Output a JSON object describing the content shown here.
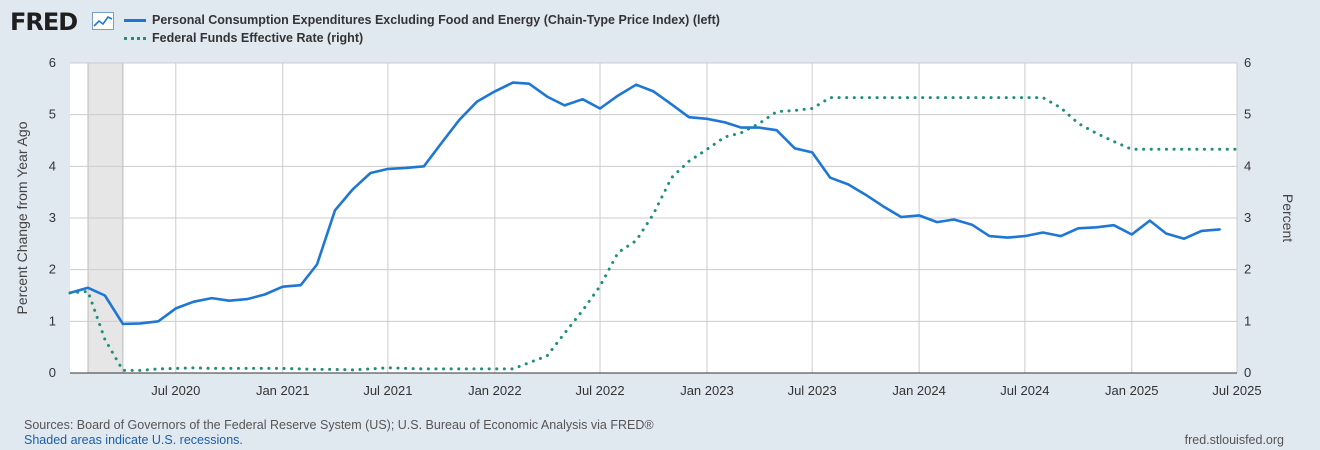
{
  "header": {
    "logo_text": "FRED",
    "logo_icon": "chart-line-icon"
  },
  "colors": {
    "background": "#e1e9f0",
    "plot_bg": "#ffffff",
    "grid": "#cccccc",
    "series1": "#1f77d4",
    "series2": "#1d8f7a",
    "recession": "#e6e6e6"
  },
  "chart_data": {
    "type": "line",
    "series": [
      {
        "name": "Personal Consumption Expenditures Excluding Food and Energy (Chain-Type Price Index) (left)",
        "axis": "left",
        "style": "solid",
        "points": [
          [
            "2020-01-01",
            1.55
          ],
          [
            "2020-02-01",
            1.65
          ],
          [
            "2020-03-01",
            1.5
          ],
          [
            "2020-04-01",
            0.95
          ],
          [
            "2020-05-01",
            0.96
          ],
          [
            "2020-06-01",
            1.0
          ],
          [
            "2020-07-01",
            1.25
          ],
          [
            "2020-08-01",
            1.38
          ],
          [
            "2020-09-01",
            1.45
          ],
          [
            "2020-10-01",
            1.4
          ],
          [
            "2020-11-01",
            1.43
          ],
          [
            "2020-12-01",
            1.52
          ],
          [
            "2021-01-01",
            1.67
          ],
          [
            "2021-02-01",
            1.7
          ],
          [
            "2021-03-01",
            2.1
          ],
          [
            "2021-04-01",
            3.15
          ],
          [
            "2021-05-01",
            3.55
          ],
          [
            "2021-06-01",
            3.87
          ],
          [
            "2021-07-01",
            3.95
          ],
          [
            "2021-08-01",
            3.97
          ],
          [
            "2021-09-01",
            4.0
          ],
          [
            "2021-10-01",
            4.45
          ],
          [
            "2021-11-01",
            4.9
          ],
          [
            "2021-12-01",
            5.25
          ],
          [
            "2022-01-01",
            5.45
          ],
          [
            "2022-02-01",
            5.62
          ],
          [
            "2022-03-01",
            5.6
          ],
          [
            "2022-04-01",
            5.35
          ],
          [
            "2022-05-01",
            5.18
          ],
          [
            "2022-06-01",
            5.3
          ],
          [
            "2022-07-01",
            5.12
          ],
          [
            "2022-08-01",
            5.37
          ],
          [
            "2022-09-01",
            5.58
          ],
          [
            "2022-10-01",
            5.45
          ],
          [
            "2022-11-01",
            5.2
          ],
          [
            "2022-12-01",
            4.95
          ],
          [
            "2023-01-01",
            4.92
          ],
          [
            "2023-02-01",
            4.85
          ],
          [
            "2023-03-01",
            4.75
          ],
          [
            "2023-04-01",
            4.75
          ],
          [
            "2023-05-01",
            4.7
          ],
          [
            "2023-06-01",
            4.35
          ],
          [
            "2023-07-01",
            4.27
          ],
          [
            "2023-08-01",
            3.78
          ],
          [
            "2023-09-01",
            3.65
          ],
          [
            "2023-10-01",
            3.45
          ],
          [
            "2023-11-01",
            3.22
          ],
          [
            "2023-12-01",
            3.02
          ],
          [
            "2024-01-01",
            3.05
          ],
          [
            "2024-02-01",
            2.92
          ],
          [
            "2024-03-01",
            2.97
          ],
          [
            "2024-04-01",
            2.87
          ],
          [
            "2024-05-01",
            2.65
          ],
          [
            "2024-06-01",
            2.62
          ],
          [
            "2024-07-01",
            2.65
          ],
          [
            "2024-08-01",
            2.72
          ],
          [
            "2024-09-01",
            2.65
          ],
          [
            "2024-10-01",
            2.8
          ],
          [
            "2024-11-01",
            2.82
          ],
          [
            "2024-12-01",
            2.86
          ],
          [
            "2025-01-01",
            2.68
          ],
          [
            "2025-02-01",
            2.95
          ],
          [
            "2025-03-01",
            2.7
          ],
          [
            "2025-04-01",
            2.6
          ],
          [
            "2025-05-01",
            2.75
          ],
          [
            "2025-06-01",
            2.78
          ]
        ]
      },
      {
        "name": "Federal Funds Effective Rate (right)",
        "axis": "right",
        "style": "dotted",
        "points": [
          [
            "2020-01-01",
            1.55
          ],
          [
            "2020-02-01",
            1.58
          ],
          [
            "2020-03-01",
            0.65
          ],
          [
            "2020-04-01",
            0.05
          ],
          [
            "2020-05-01",
            0.05
          ],
          [
            "2020-06-01",
            0.08
          ],
          [
            "2020-07-01",
            0.09
          ],
          [
            "2020-08-01",
            0.1
          ],
          [
            "2020-09-01",
            0.09
          ],
          [
            "2020-10-01",
            0.09
          ],
          [
            "2020-11-01",
            0.09
          ],
          [
            "2020-12-01",
            0.09
          ],
          [
            "2021-01-01",
            0.09
          ],
          [
            "2021-02-01",
            0.08
          ],
          [
            "2021-03-01",
            0.07
          ],
          [
            "2021-04-01",
            0.07
          ],
          [
            "2021-05-01",
            0.06
          ],
          [
            "2021-06-01",
            0.08
          ],
          [
            "2021-07-01",
            0.1
          ],
          [
            "2021-08-01",
            0.09
          ],
          [
            "2021-09-01",
            0.08
          ],
          [
            "2021-10-01",
            0.08
          ],
          [
            "2021-11-01",
            0.08
          ],
          [
            "2021-12-01",
            0.08
          ],
          [
            "2022-01-01",
            0.08
          ],
          [
            "2022-02-01",
            0.08
          ],
          [
            "2022-03-01",
            0.2
          ],
          [
            "2022-04-01",
            0.33
          ],
          [
            "2022-05-01",
            0.77
          ],
          [
            "2022-06-01",
            1.21
          ],
          [
            "2022-07-01",
            1.68
          ],
          [
            "2022-08-01",
            2.33
          ],
          [
            "2022-09-01",
            2.56
          ],
          [
            "2022-10-01",
            3.08
          ],
          [
            "2022-11-01",
            3.78
          ],
          [
            "2022-12-01",
            4.1
          ],
          [
            "2023-01-01",
            4.33
          ],
          [
            "2023-02-01",
            4.57
          ],
          [
            "2023-03-01",
            4.65
          ],
          [
            "2023-04-01",
            4.83
          ],
          [
            "2023-05-01",
            5.06
          ],
          [
            "2023-06-01",
            5.08
          ],
          [
            "2023-07-01",
            5.12
          ],
          [
            "2023-08-01",
            5.33
          ],
          [
            "2023-09-01",
            5.33
          ],
          [
            "2023-10-01",
            5.33
          ],
          [
            "2023-11-01",
            5.33
          ],
          [
            "2023-12-01",
            5.33
          ],
          [
            "2024-01-01",
            5.33
          ],
          [
            "2024-02-01",
            5.33
          ],
          [
            "2024-03-01",
            5.33
          ],
          [
            "2024-04-01",
            5.33
          ],
          [
            "2024-05-01",
            5.33
          ],
          [
            "2024-06-01",
            5.33
          ],
          [
            "2024-07-01",
            5.33
          ],
          [
            "2024-08-01",
            5.33
          ],
          [
            "2024-09-01",
            5.13
          ],
          [
            "2024-10-01",
            4.83
          ],
          [
            "2024-11-01",
            4.64
          ],
          [
            "2024-12-01",
            4.48
          ],
          [
            "2025-01-01",
            4.33
          ],
          [
            "2025-02-01",
            4.33
          ],
          [
            "2025-03-01",
            4.33
          ],
          [
            "2025-04-01",
            4.33
          ],
          [
            "2025-05-01",
            4.33
          ],
          [
            "2025-06-01",
            4.33
          ],
          [
            "2025-07-01",
            4.33
          ]
        ]
      }
    ],
    "x_range": [
      "2020-01-01",
      "2025-07-01"
    ],
    "x_ticks": [
      {
        "date": "2020-07-01",
        "label": "Jul 2020"
      },
      {
        "date": "2021-01-01",
        "label": "Jan 2021"
      },
      {
        "date": "2021-07-01",
        "label": "Jul 2021"
      },
      {
        "date": "2022-01-01",
        "label": "Jan 2022"
      },
      {
        "date": "2022-07-01",
        "label": "Jul 2022"
      },
      {
        "date": "2023-01-01",
        "label": "Jan 2023"
      },
      {
        "date": "2023-07-01",
        "label": "Jul 2023"
      },
      {
        "date": "2024-01-01",
        "label": "Jan 2024"
      },
      {
        "date": "2024-07-01",
        "label": "Jul 2024"
      },
      {
        "date": "2025-01-01",
        "label": "Jan 2025"
      },
      {
        "date": "2025-07-01",
        "label": "Jul 2025"
      }
    ],
    "ylim_left": [
      0,
      6
    ],
    "ylim_right": [
      0,
      6
    ],
    "yticks_left": [
      0,
      1,
      2,
      3,
      4,
      5,
      6
    ],
    "yticks_right": [
      0,
      1,
      2,
      3,
      4,
      5,
      6
    ],
    "ylabel_left": "Percent Change from Year Ago",
    "ylabel_right": "Percent",
    "recession": {
      "start": "2020-02-01",
      "end": "2020-04-01"
    },
    "grid": true,
    "legend_placement": "top-left"
  },
  "footer": {
    "sources": "Sources: Board of Governors of the Federal Reserve System (US); U.S. Bureau of Economic Analysis via FRED®",
    "recession_note": "Shaded areas indicate U.S. recessions.",
    "url": "fred.stlouisfed.org"
  }
}
